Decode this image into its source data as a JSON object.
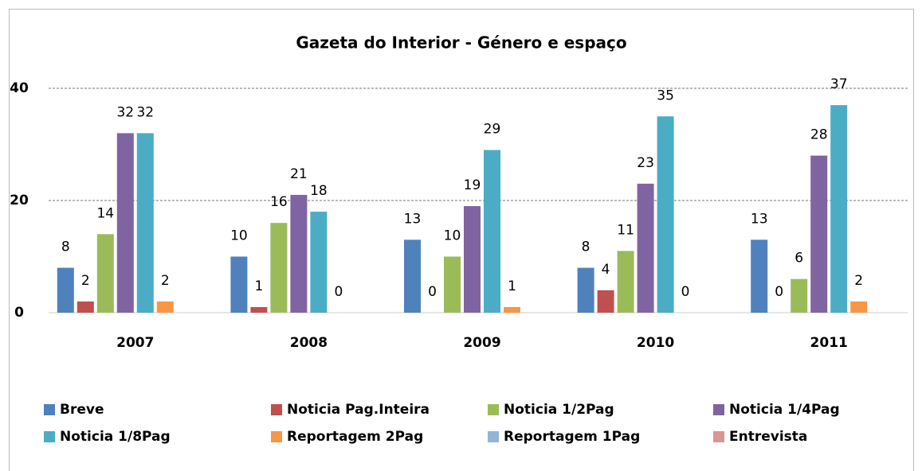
{
  "chart_data": {
    "type": "bar",
    "title": "Gazeta do Interior - Género e espaço",
    "categories": [
      "2007",
      "2008",
      "2009",
      "2010",
      "2011"
    ],
    "series": [
      {
        "name": "Breve",
        "color": "#4f81bd",
        "values": [
          8,
          10,
          13,
          8,
          13
        ]
      },
      {
        "name": "Noticia Pag.Inteira",
        "color": "#c0504d",
        "values": [
          2,
          1,
          0,
          4,
          0
        ]
      },
      {
        "name": "Noticia 1/2Pag",
        "color": "#9bbb59",
        "values": [
          14,
          16,
          10,
          11,
          6
        ]
      },
      {
        "name": "Noticia 1/4Pag",
        "color": "#8064a2",
        "values": [
          32,
          21,
          19,
          23,
          28
        ]
      },
      {
        "name": "Noticia 1/8Pag",
        "color": "#4bacc6",
        "values": [
          32,
          18,
          29,
          35,
          37
        ]
      },
      {
        "name": "Reportagem 2Pag",
        "color": "#f79646",
        "values": [
          2,
          0,
          1,
          0,
          2
        ]
      },
      {
        "name": "Reportagem 1Pag",
        "color": "#95b3d7",
        "values": [
          null,
          null,
          null,
          null,
          null
        ]
      },
      {
        "name": "Entrevista",
        "color": "#d99694",
        "values": [
          null,
          null,
          null,
          null,
          null
        ]
      }
    ],
    "ylim": [
      0,
      40
    ],
    "yticks": [
      0,
      20,
      40
    ],
    "grid": true,
    "legend": "bottom"
  }
}
